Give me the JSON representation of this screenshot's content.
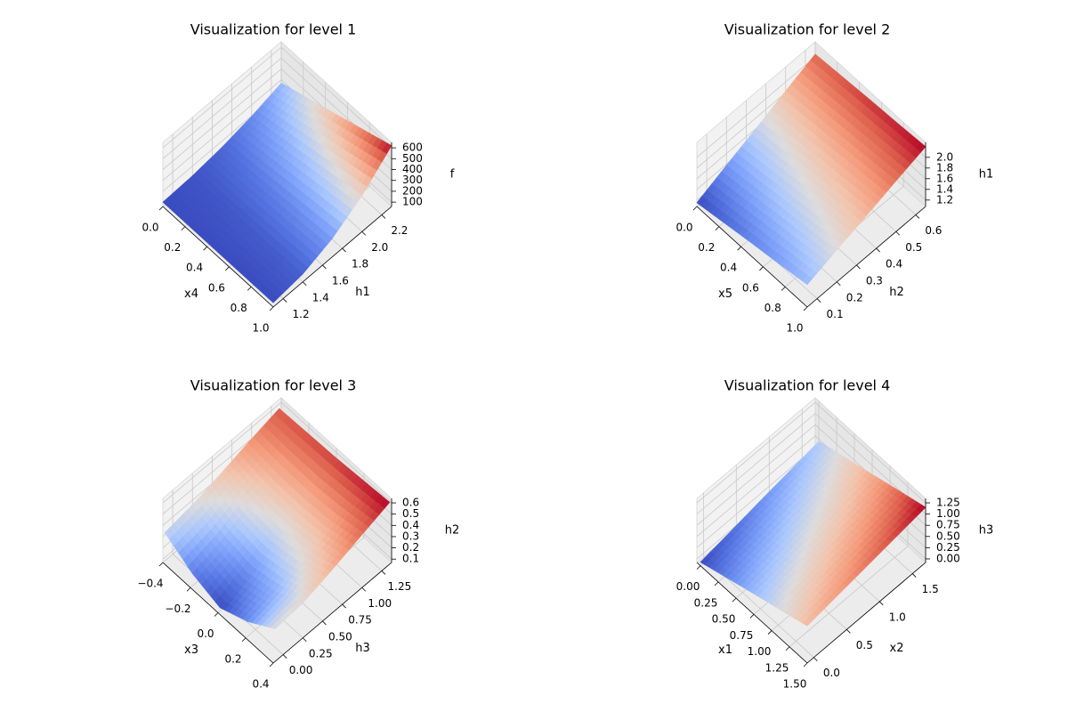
{
  "chart_data": [
    {
      "type": "surface",
      "title": "Visualization for level 1",
      "xlabel": "x4",
      "ylabel": "h1",
      "zlabel": "f",
      "colormap": "coolwarm",
      "xlim": [
        0,
        1
      ],
      "ylim": [
        1.1,
        2.3
      ],
      "zlim": [
        60,
        650
      ],
      "xticks": [
        {
          "value": 0,
          "label": "0.0"
        },
        0.2,
        0.4,
        0.6,
        0.8,
        {
          "value": 1,
          "label": "1.0"
        }
      ],
      "yticks": [
        1.2,
        1.4,
        1.6,
        1.8,
        {
          "value": 2,
          "label": "2.0"
        },
        2.2
      ],
      "zticks": [
        100,
        200,
        300,
        400,
        500,
        600
      ],
      "surface": {
        "x": [
          0,
          0.25,
          0.5,
          0.75,
          1
        ],
        "y": [
          1.1,
          1.4,
          1.7,
          2.0,
          2.3
        ],
        "z": [
          [
            100,
            100,
            100,
            100,
            100
          ],
          [
            111,
            116,
            122,
            127,
            133
          ],
          [
            143,
            164,
            186,
            208,
            230
          ],
          [
            196,
            245,
            294,
            343,
            393
          ],
          [
            270,
            357,
            445,
            532,
            620
          ]
        ]
      }
    },
    {
      "type": "surface",
      "title": "Visualization for level 2",
      "xlabel": "x5",
      "ylabel": "h2",
      "zlabel": "h1",
      "colormap": "coolwarm",
      "xlim": [
        0,
        1
      ],
      "ylim": [
        0.05,
        0.65
      ],
      "zlim": [
        1.08,
        2.28
      ],
      "xticks": [
        {
          "value": 0,
          "label": "0.0"
        },
        0.2,
        0.4,
        0.6,
        0.8,
        {
          "value": 1,
          "label": "1.0"
        }
      ],
      "yticks": [
        0.1,
        0.2,
        0.3,
        0.4,
        0.5,
        0.6
      ],
      "zticks": [
        1.2,
        1.4,
        1.6,
        1.8,
        {
          "value": 2,
          "label": "2.0"
        }
      ],
      "surface": {
        "x": [
          0,
          0.25,
          0.5,
          0.75,
          1
        ],
        "y": [
          0.05,
          0.2,
          0.35,
          0.5,
          0.65
        ],
        "z": [
          [
            1.15,
            1.24,
            1.33,
            1.41,
            1.5
          ],
          [
            1.38,
            1.45,
            1.53,
            1.6,
            1.68
          ],
          [
            1.6,
            1.66,
            1.73,
            1.79,
            1.85
          ],
          [
            1.83,
            1.88,
            1.93,
            1.98,
            2.03
          ],
          [
            2.05,
            2.09,
            2.13,
            2.16,
            2.2
          ]
        ]
      }
    },
    {
      "type": "surface",
      "title": "Visualization for level 3",
      "xlabel": "x3",
      "ylabel": "h3",
      "zlabel": "h2",
      "colormap": "coolwarm",
      "xlim": [
        -0.4,
        0.4
      ],
      "ylim": [
        -0.125,
        1.375
      ],
      "zlim": [
        0.07,
        0.64
      ],
      "xticks": [
        {
          "value": -0.4,
          "label": "−0.4"
        },
        {
          "value": -0.2,
          "label": "−0.2"
        },
        {
          "value": 0,
          "label": "0.0"
        },
        0.2,
        0.4
      ],
      "yticks": [
        {
          "value": 0,
          "label": "0.00"
        },
        0.25,
        {
          "value": 0.5,
          "label": "0.50"
        },
        0.75,
        {
          "value": 1,
          "label": "1.00"
        },
        1.25
      ],
      "zticks": [
        0.1,
        0.2,
        0.3,
        0.4,
        0.5,
        0.6
      ],
      "surface": {
        "x": [
          -0.4,
          -0.2,
          0,
          0.2,
          0.4
        ],
        "y": [
          -0.1,
          0.25,
          0.6,
          0.95,
          1.35
        ],
        "z": [
          [
            0.32,
            0.18,
            0.1,
            0.2,
            0.36
          ],
          [
            0.36,
            0.25,
            0.2,
            0.26,
            0.38
          ],
          [
            0.42,
            0.36,
            0.33,
            0.37,
            0.45
          ],
          [
            0.49,
            0.46,
            0.45,
            0.47,
            0.53
          ],
          [
            0.56,
            0.57,
            0.58,
            0.6,
            0.62
          ]
        ]
      }
    },
    {
      "type": "surface",
      "title": "Visualization for level 4",
      "xlabel": "x1",
      "ylabel": "x2",
      "zlabel": "h3",
      "colormap": "coolwarm",
      "xlim": [
        -0.05,
        1.5
      ],
      "ylim": [
        -0.1,
        1.7
      ],
      "zlim": [
        -0.08,
        1.35
      ],
      "xticks": [
        {
          "value": 0,
          "label": "0.00"
        },
        0.25,
        {
          "value": 0.5,
          "label": "0.50"
        },
        0.75,
        {
          "value": 1,
          "label": "1.00"
        },
        1.25,
        {
          "value": 1.5,
          "label": "1.50"
        }
      ],
      "yticks": [
        {
          "value": 0,
          "label": "0.0"
        },
        0.5,
        {
          "value": 1,
          "label": "1.0"
        },
        1.5
      ],
      "zticks": [
        {
          "value": 0,
          "label": "0.00"
        },
        0.25,
        {
          "value": 0.5,
          "label": "0.50"
        },
        0.75,
        {
          "value": 1,
          "label": "1.00"
        },
        1.25
      ],
      "surface": {
        "x": [
          0,
          0.375,
          0.75,
          1.125,
          1.5
        ],
        "y": [
          -0.1,
          0.35,
          0.8,
          1.25,
          1.7
        ],
        "z": [
          [
            0,
            0.19,
            0.38,
            0.56,
            0.75
          ],
          [
            0.11,
            0.3,
            0.48,
            0.67,
            0.85
          ],
          [
            0.23,
            0.41,
            0.59,
            0.77,
            0.95
          ],
          [
            0.34,
            0.52,
            0.69,
            0.87,
            1.05
          ],
          [
            0.45,
            0.63,
            0.8,
            0.98,
            1.15
          ]
        ]
      }
    }
  ]
}
